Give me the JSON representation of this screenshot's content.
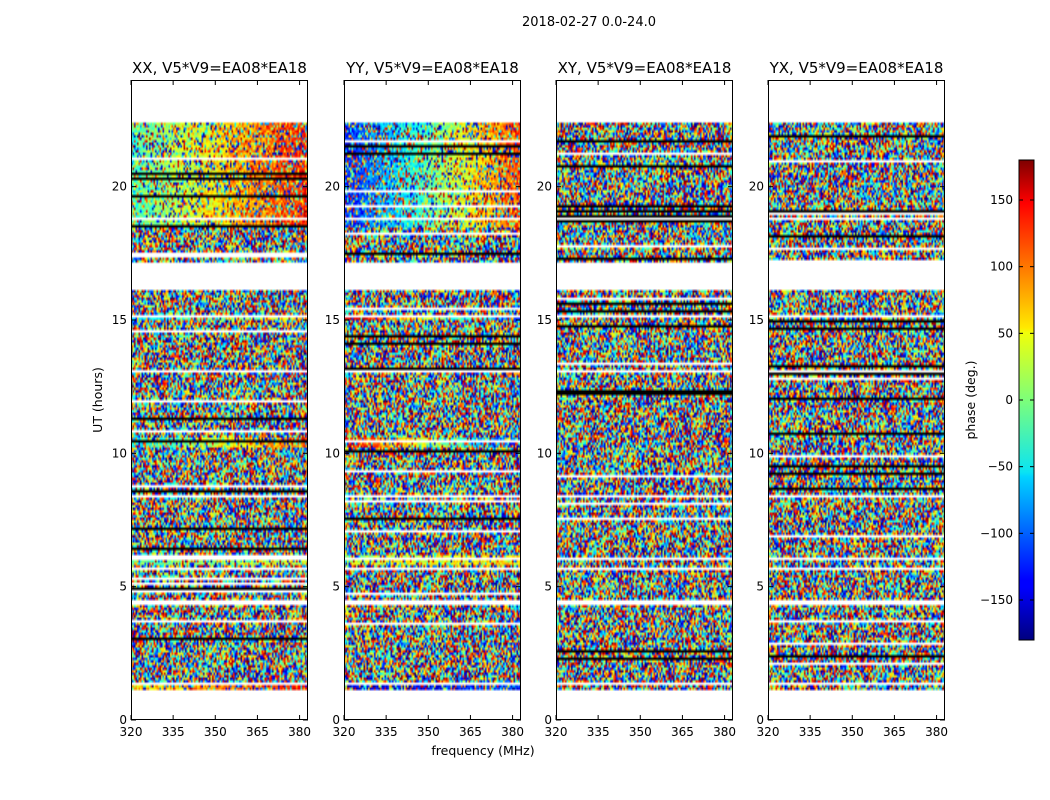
{
  "chart_data": {
    "type": "heatmap",
    "suptitle": "2018-02-27 0.0-24.0",
    "xlabel": "frequency (MHz)",
    "ylabel": "UT (hours)",
    "xlim": [
      320,
      383
    ],
    "ylim": [
      0,
      24
    ],
    "xticks": [
      320,
      335,
      350,
      365,
      380
    ],
    "yticks": [
      0,
      5,
      10,
      15,
      20
    ],
    "data_range_hours": [
      1.1,
      22.4
    ],
    "colormap": "jet",
    "bad_value_color": "#ffffff",
    "colorbar": {
      "label": "phase (deg.)",
      "range": [
        -180,
        180
      ],
      "ticks": [
        -150,
        -100,
        -50,
        0,
        50,
        100,
        150
      ]
    },
    "flagged_gaps_hours": [
      [
        16.1,
        17.2
      ],
      [
        4.35,
        4.5
      ],
      [
        18.75,
        18.85
      ],
      [
        15.1,
        15.2
      ],
      [
        13.0,
        13.1
      ],
      [
        8.3,
        8.45
      ],
      [
        6.0,
        6.1
      ],
      [
        5.65,
        5.75
      ],
      [
        1.35,
        1.45
      ]
    ],
    "panels": [
      {
        "title": "XX, V5*V9=EA08*EA18",
        "coherent_features": [
          {
            "hours": [
              18.5,
              22.4
            ],
            "phase_start": -20,
            "phase_end": 130
          },
          {
            "hours": [
              15.0,
              15.2
            ],
            "phase_start": -60,
            "phase_end": 60
          },
          {
            "hours": [
              10.2,
              10.6
            ],
            "phase_start": -50,
            "phase_end": 110
          },
          {
            "hours": [
              5.8,
              6.2
            ],
            "phase_start": -10,
            "phase_end": 30
          },
          {
            "hours": [
              1.1,
              1.3
            ],
            "phase_start": 60,
            "phase_end": 120
          }
        ]
      },
      {
        "title": "YY, V5*V9=EA08*EA18",
        "coherent_features": [
          {
            "hours": [
              18.5,
              22.4
            ],
            "phase_start": -130,
            "phase_end": 120
          },
          {
            "hours": [
              15.0,
              15.2
            ],
            "phase_start": 170,
            "phase_end": -120
          },
          {
            "hours": [
              10.2,
              10.6
            ],
            "phase_start": 150,
            "phase_end": -130
          },
          {
            "hours": [
              5.8,
              6.2
            ],
            "phase_start": 20,
            "phase_end": 60
          },
          {
            "hours": [
              1.1,
              1.3
            ],
            "phase_start": -150,
            "phase_end": -120
          }
        ]
      },
      {
        "title": "XY, V5*V9=EA08*EA18",
        "coherent_features": []
      },
      {
        "title": "YX, V5*V9=EA08*EA18",
        "coherent_features": []
      }
    ]
  }
}
